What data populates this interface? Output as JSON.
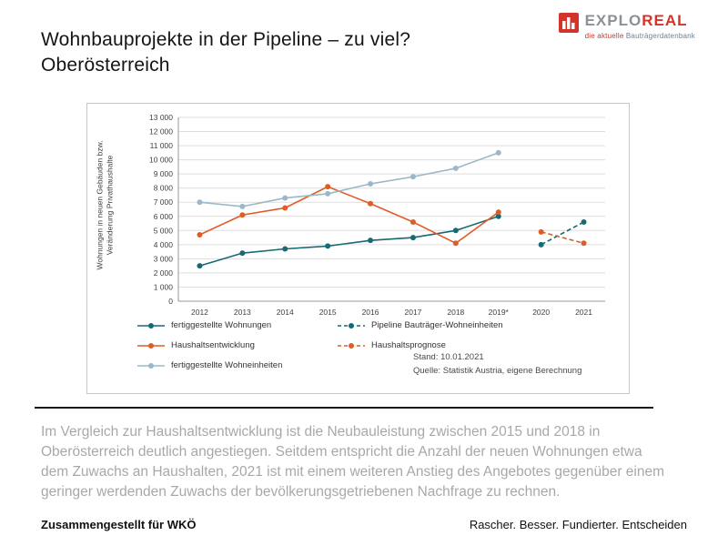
{
  "slide": {
    "title_line1": "Wohnbauprojekte in der Pipeline – zu viel?",
    "title_line2": "Oberösterreich",
    "body_text": "Im Vergleich zur Haushaltsentwicklung ist die Neubauleistung zwischen 2015 und 2018 in Oberösterreich deutlich angestiegen. Seitdem entspricht die Anzahl der neuen Wohnungen etwa dem Zuwachs an Haushalten, 2021 ist mit einem weiteren Anstieg des Angebotes gegenüber einem geringer werdenden Zuwachs der bevölkerungsgetriebenen Nachfrage zu rechnen.",
    "footer_left": "Zusammengestellt für WKÖ",
    "footer_right": "Rascher. Besser. Fundierter. Entscheiden"
  },
  "logo": {
    "brand_part1": "EXPLO",
    "brand_part2": "REAL",
    "tagline_part1": "die aktuelle ",
    "tagline_part2": "Bauträgerdatenbank",
    "color_gray": "#8b9196",
    "color_red": "#d2342a",
    "color_steel": "#6e7f93"
  },
  "chart_data": {
    "type": "line",
    "title": "",
    "ylabel_line1": "Wohnungen in neuen Gebäuden bzw.",
    "ylabel_line2": "Veränderung Privathaushalte",
    "categories": [
      "2012",
      "2013",
      "2014",
      "2015",
      "2016",
      "2017",
      "2018",
      "2019*",
      "2020",
      "2021"
    ],
    "ylim": [
      0,
      13000
    ],
    "ytick_step": 1000,
    "grid": true,
    "legend_position": "bottom",
    "series": [
      {
        "name": "fertiggestellte Wohnungen",
        "color": "#166a73",
        "dashed": false,
        "values": [
          2500,
          3400,
          3700,
          3900,
          4300,
          4500,
          5000,
          6000,
          null,
          null
        ]
      },
      {
        "name": "Pipeline Bauträger-Wohneinheiten",
        "color": "#166a73",
        "dashed": true,
        "values": [
          null,
          null,
          null,
          null,
          null,
          null,
          null,
          null,
          4000,
          5600
        ]
      },
      {
        "name": "Haushaltsentwicklung",
        "color": "#e05c26",
        "dashed": false,
        "values": [
          4700,
          6100,
          6600,
          8100,
          6900,
          5600,
          4100,
          6300,
          null,
          null
        ]
      },
      {
        "name": "Haushaltsprognose",
        "color": "#e05c26",
        "dashed": true,
        "values": [
          null,
          null,
          null,
          null,
          null,
          null,
          null,
          null,
          4900,
          4100
        ]
      },
      {
        "name": "fertiggestellte Wohneinheiten",
        "color": "#9bb8c9",
        "dashed": false,
        "values": [
          7000,
          6700,
          7300,
          7600,
          8300,
          8800,
          9400,
          10500,
          null,
          null
        ]
      }
    ],
    "stand": "Stand: 10.01.2021",
    "quelle": "Quelle: Statistik Austria, eigene Berechnung"
  }
}
